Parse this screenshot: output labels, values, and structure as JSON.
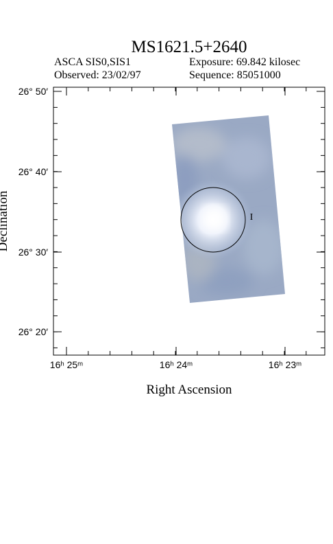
{
  "header": {
    "title": "MS1621.5+2640",
    "instrument": "ASCA SIS0,SIS1",
    "exposure": "Exposure: 69.842 kilosec",
    "observed": "Observed: 23/02/97",
    "sequence": "Sequence: 85051000"
  },
  "axes": {
    "x_label": "Right Ascension",
    "y_label": "Declination",
    "x_ticks": [
      "16ʰ 25ᵐ",
      "16ʰ 24ᵐ",
      "16ʰ 23ᵐ"
    ],
    "y_ticks": [
      "26° 50′",
      "26° 40′",
      "26° 30′",
      "26° 20′"
    ]
  }
}
